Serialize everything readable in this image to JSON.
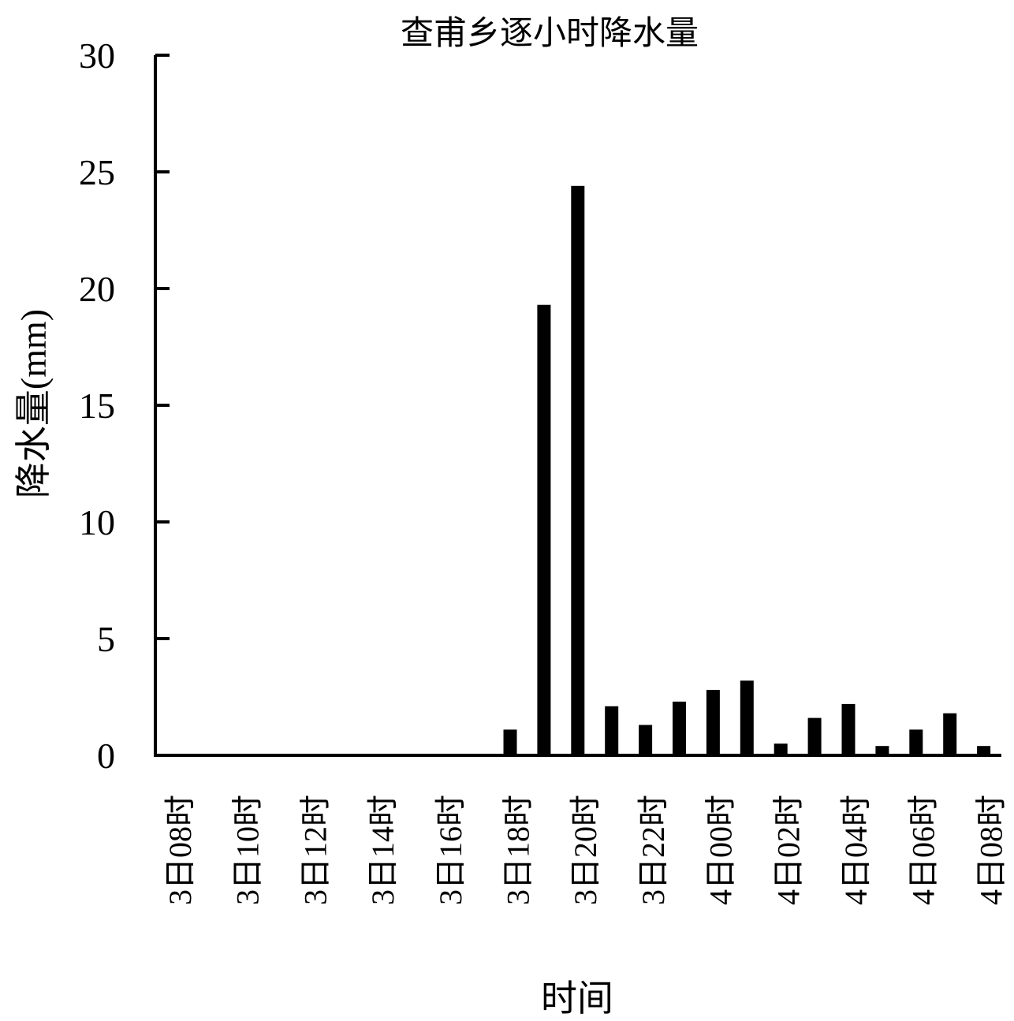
{
  "chart_data": {
    "type": "bar",
    "title": "查甫乡逐小时降水量",
    "xlabel": "时间",
    "ylabel": "降水量(mm)",
    "ylim": [
      0,
      30
    ],
    "yticks": [
      "0",
      "5",
      "10",
      "15",
      "20",
      "25",
      "30"
    ],
    "grid": false,
    "legend": "none",
    "bar_color": "#000000",
    "categories": [
      "3日08时",
      "3日09时",
      "3日10时",
      "3日11时",
      "3日12时",
      "3日13时",
      "3日14时",
      "3日15时",
      "3日16时",
      "3日17时",
      "3日18时",
      "3日19时",
      "3日20时",
      "3日21时",
      "3日22时",
      "3日23时",
      "4日00时",
      "4日01时",
      "4日02时",
      "4日03时",
      "4日04时",
      "4日05时",
      "4日06时",
      "4日07时",
      "4日08时"
    ],
    "xtick_labels": [
      "3日08时",
      "3日10时",
      "3日12时",
      "3日14时",
      "3日16时",
      "3日18时",
      "3日20时",
      "3日22时",
      "4日00时",
      "4日02时",
      "4日04时",
      "4日06时",
      "4日08时"
    ],
    "values": [
      0,
      0,
      0,
      0,
      0,
      0,
      0,
      0,
      0,
      0,
      1.1,
      19.3,
      24.4,
      2.1,
      1.3,
      2.3,
      2.8,
      3.2,
      0.5,
      1.6,
      2.2,
      0.4,
      1.1,
      1.8,
      0.4
    ]
  }
}
